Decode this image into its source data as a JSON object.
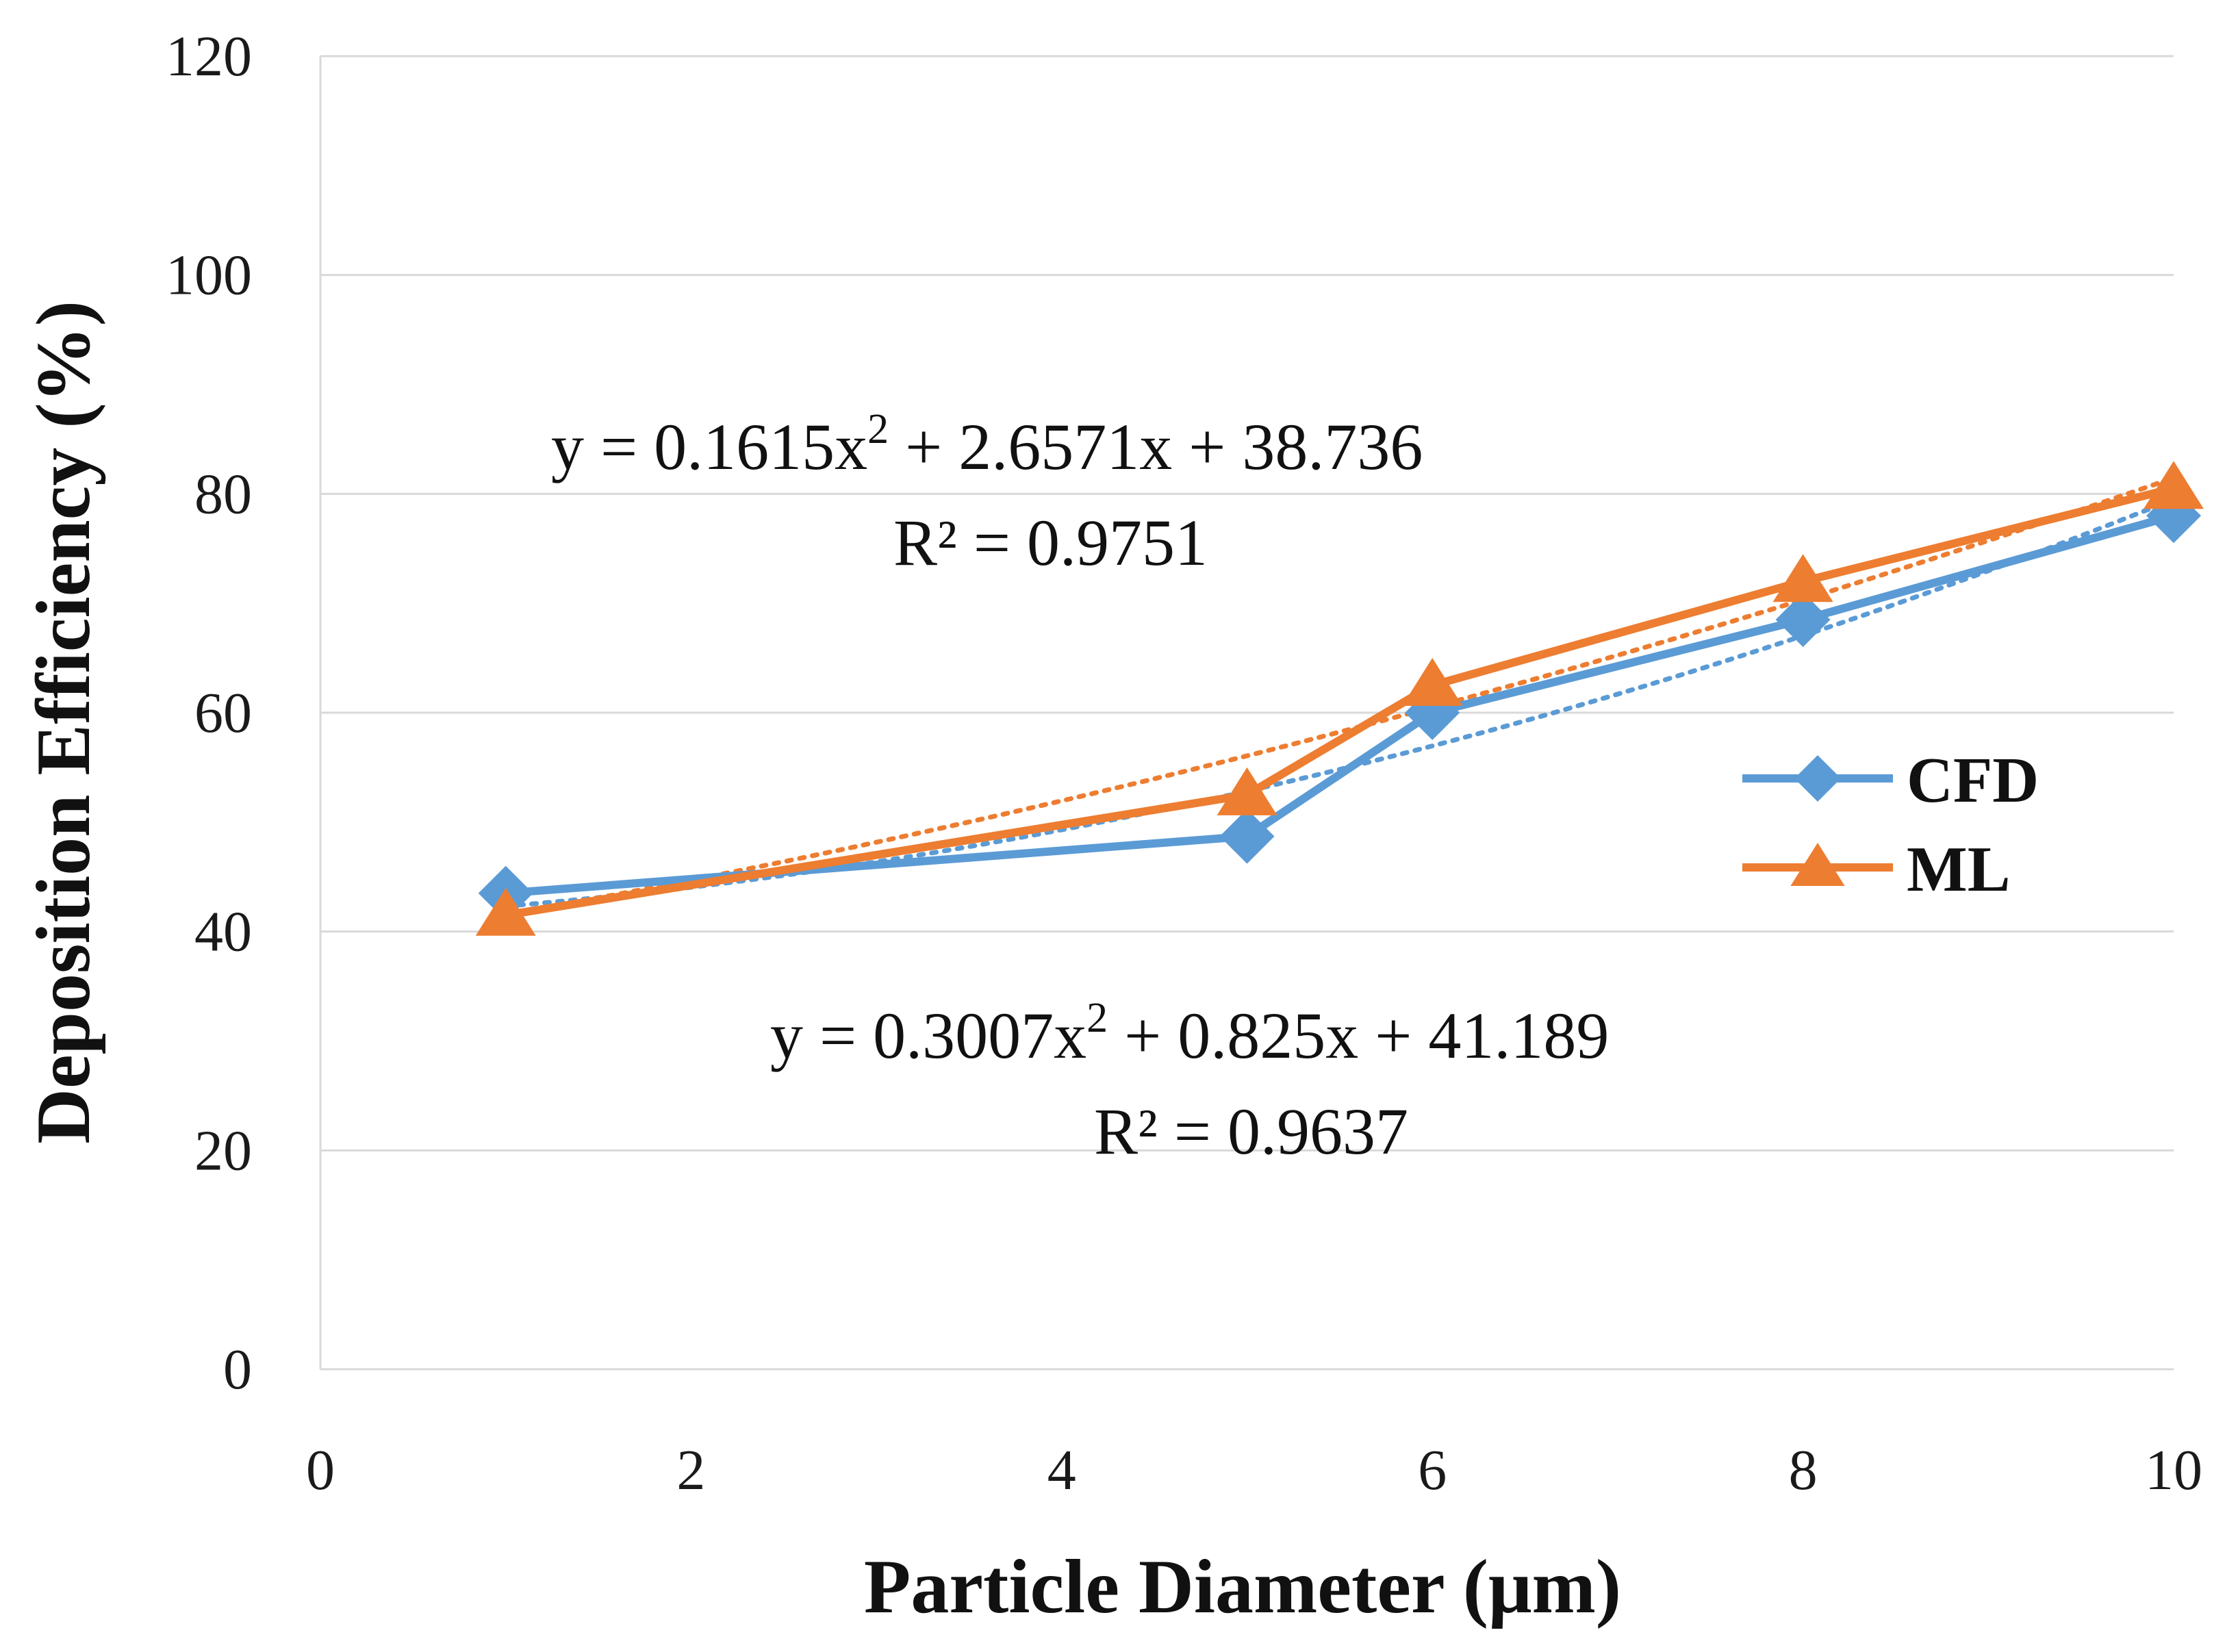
{
  "chart_data": {
    "type": "line",
    "xlabel": "Particle Diameter (μm)",
    "ylabel": "Deposition Efficiency (%)",
    "xlim": [
      0,
      10
    ],
    "ylim": [
      0,
      120
    ],
    "xticks": [
      "0",
      "2",
      "4",
      "6",
      "8",
      "10"
    ],
    "yticks": [
      "0",
      "20",
      "40",
      "60",
      "80",
      "100",
      "120"
    ],
    "grid": "horizontal",
    "legend_position": "right",
    "x": [
      1,
      5,
      6,
      8,
      10
    ],
    "series": [
      {
        "name": "CFD",
        "color": "#5b9bd5",
        "marker": "diamond",
        "values": [
          43.5,
          48.7,
          60,
          68.5,
          78
        ],
        "trendline": {
          "a": 0.3007,
          "b": 0.825,
          "c": 41.189
        },
        "equation": "y = 0.3007x² + 0.825x + 41.189",
        "r2": "R² = 0.9637"
      },
      {
        "name": "ML",
        "color": "#ed7d31",
        "marker": "triangle",
        "values": [
          41.5,
          52.5,
          62.5,
          72,
          80.5
        ],
        "trendline": {
          "a": 0.1615,
          "b": 2.6571,
          "c": 38.736
        },
        "equation": "y = 0.1615x² + 2.6571x + 38.736",
        "r2": "R² = 0.9751"
      }
    ]
  }
}
